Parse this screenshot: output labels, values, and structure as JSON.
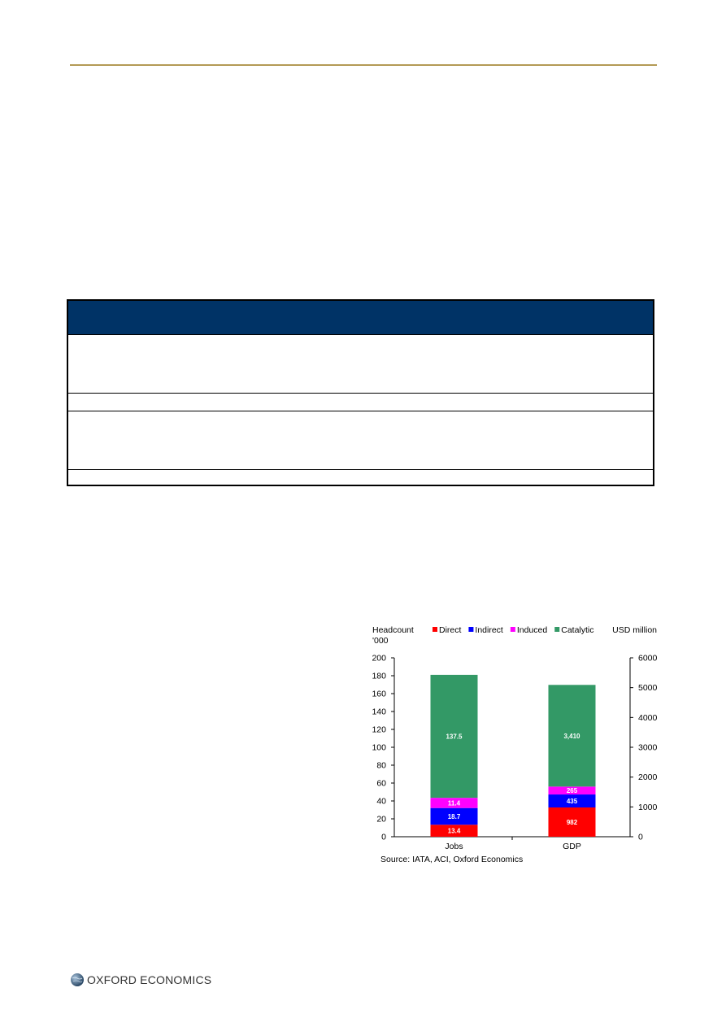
{
  "chart_data": {
    "type": "bar",
    "stacked": true,
    "categories": [
      "Jobs",
      "GDP"
    ],
    "left_axis": {
      "label_line1": "Headcount",
      "label_line2": "'000",
      "min": 0,
      "max": 200,
      "ticks": [
        0,
        20,
        40,
        60,
        80,
        100,
        120,
        140,
        160,
        180,
        200
      ]
    },
    "right_axis": {
      "label": "USD million",
      "min": 0,
      "max": 6000,
      "ticks": [
        0,
        1000,
        2000,
        3000,
        4000,
        5000,
        6000
      ]
    },
    "series": [
      {
        "name": "Direct",
        "color": "#ff0000",
        "values": [
          13.4,
          982
        ],
        "labels": [
          "13.4",
          "982"
        ]
      },
      {
        "name": "Indirect",
        "color": "#0000ff",
        "values": [
          18.7,
          435
        ],
        "labels": [
          "18.7",
          "435"
        ]
      },
      {
        "name": "Induced",
        "color": "#ff00ff",
        "values": [
          11.4,
          265
        ],
        "labels": [
          "11.4",
          "265"
        ]
      },
      {
        "name": "Catalytic",
        "color": "#339966",
        "values": [
          137.5,
          3410
        ],
        "labels": [
          "137.5",
          "3,410"
        ]
      }
    ],
    "source": "Source: IATA, ACI, Oxford Economics"
  },
  "table": {
    "header_color": "#003366",
    "rule_color": "#b39a55"
  },
  "footer": {
    "brand": "OXFORD ECONOMICS",
    "logo_icon": "globe-icon"
  }
}
